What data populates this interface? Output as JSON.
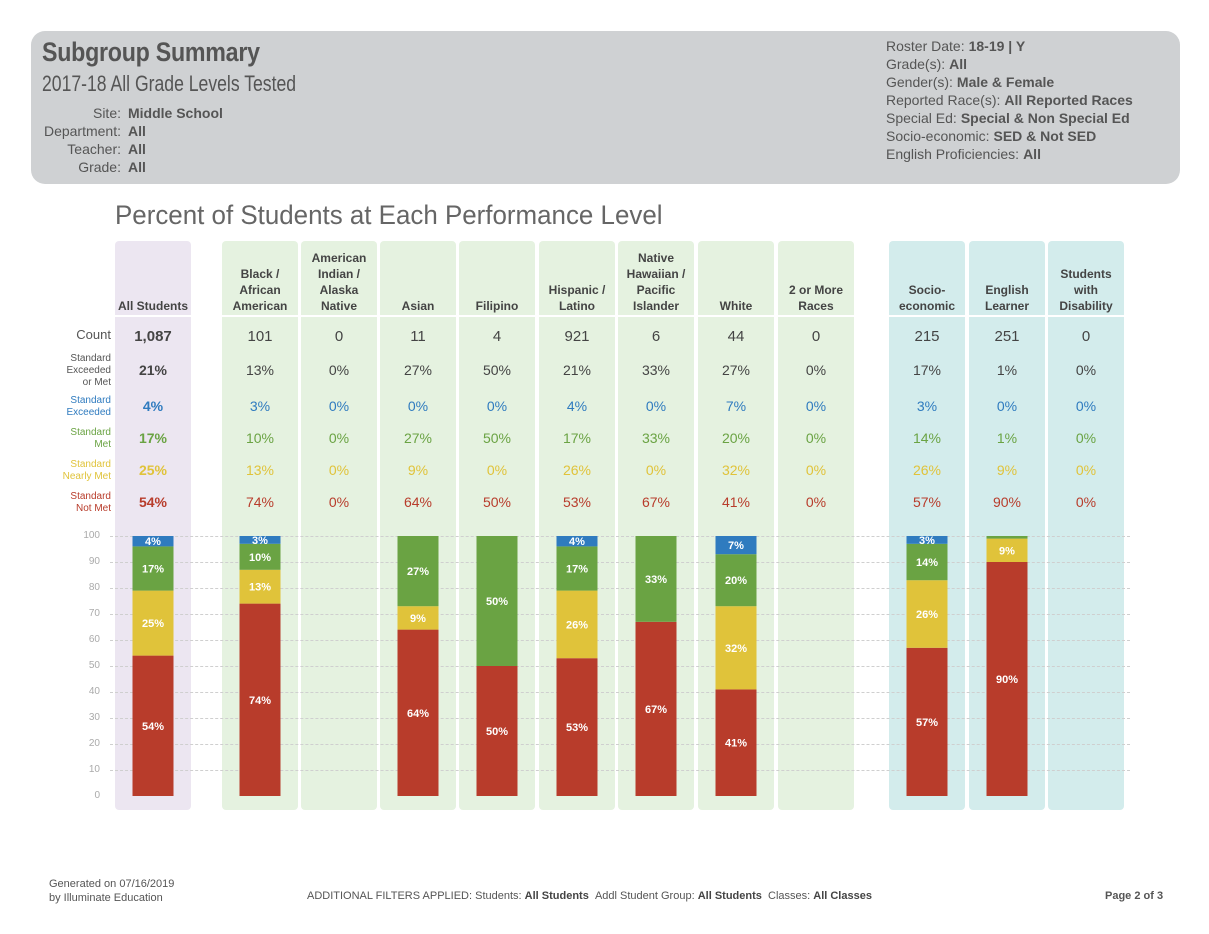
{
  "header": {
    "title": "Subgroup Summary",
    "subtitle": "2017-18  All Grade Levels Tested",
    "left": [
      {
        "key": "Site:",
        "value": "Middle School"
      },
      {
        "key": "Department:",
        "value": "All"
      },
      {
        "key": "Teacher:",
        "value": "All"
      },
      {
        "key": "Grade:",
        "value": "All"
      }
    ],
    "right": [
      {
        "key": "Roster Date:",
        "value": "18-19 | Y"
      },
      {
        "key": "Grade(s):",
        "value": "All"
      },
      {
        "key": "Gender(s):",
        "value": "Male & Female"
      },
      {
        "key": "Reported Race(s):",
        "value": "All Reported Races"
      },
      {
        "key": "Special Ed:",
        "value": "Special & Non Special Ed"
      },
      {
        "key": "Socio-economic:",
        "value": "SED & Not SED"
      },
      {
        "key": "English Proficiencies:",
        "value": "All"
      }
    ]
  },
  "colors": {
    "exceeded": "#2f7bbf",
    "met": "#6aa343",
    "nearly_met": "#e0c33a",
    "not_met": "#b83c2b",
    "met_or_exceeded_text": "#444444",
    "bg_all": "#ece6f1",
    "bg_race": "#e5f2e0",
    "bg_program": "#d3ecec"
  },
  "row_labels": {
    "count": "Count",
    "exceeded_or_met": "Standard\nExceeded\nor Met",
    "exceeded": "Standard\nExceeded",
    "met": "Standard\nMet",
    "nearly_met": "Standard\nNearly Met",
    "not_met": "Standard\nNot Met"
  },
  "chart_data": {
    "type": "bar",
    "stacked": true,
    "title": "Percent of Students at Each Performance Level",
    "ylim": [
      0,
      100
    ],
    "yticks": [
      0,
      10,
      20,
      30,
      40,
      50,
      60,
      70,
      80,
      90,
      100
    ],
    "grid": true,
    "categories": [
      "All Students",
      "Black /\nAfrican\nAmerican",
      "American\nIndian /\nAlaska\nNative",
      "Asian",
      "Filipino",
      "Hispanic /\nLatino",
      "Native\nHawaiian /\nPacific\nIslander",
      "White",
      "2 or More\nRaces",
      "Socio-\neconomic",
      "English\nLearner",
      "Students\nwith\nDisability"
    ],
    "counts": [
      "1,087",
      "101",
      "0",
      "11",
      "4",
      "921",
      "6",
      "44",
      "0",
      "215",
      "251",
      "0"
    ],
    "exceeded_or_met": [
      "21%",
      "13%",
      "0%",
      "27%",
      "50%",
      "21%",
      "33%",
      "27%",
      "0%",
      "17%",
      "1%",
      "0%"
    ],
    "series": [
      {
        "name": "Standard Exceeded",
        "key": "exceeded",
        "labels": [
          "4%",
          "3%",
          "0%",
          "0%",
          "0%",
          "4%",
          "0%",
          "7%",
          "0%",
          "3%",
          "0%",
          "0%"
        ],
        "values": [
          4,
          3,
          0,
          0,
          0,
          4,
          0,
          7,
          0,
          3,
          0,
          0
        ]
      },
      {
        "name": "Standard Met",
        "key": "met",
        "labels": [
          "17%",
          "10%",
          "0%",
          "27%",
          "50%",
          "17%",
          "33%",
          "20%",
          "0%",
          "14%",
          "1%",
          "0%"
        ],
        "values": [
          17,
          10,
          0,
          27,
          50,
          17,
          33,
          20,
          0,
          14,
          1,
          0
        ]
      },
      {
        "name": "Standard Nearly Met",
        "key": "nearly_met",
        "labels": [
          "25%",
          "13%",
          "0%",
          "9%",
          "0%",
          "26%",
          "0%",
          "32%",
          "0%",
          "26%",
          "9%",
          "0%"
        ],
        "values": [
          25,
          13,
          0,
          9,
          0,
          26,
          0,
          32,
          0,
          26,
          9,
          0
        ]
      },
      {
        "name": "Standard Not Met",
        "key": "not_met",
        "labels": [
          "54%",
          "74%",
          "0%",
          "64%",
          "50%",
          "53%",
          "67%",
          "41%",
          "0%",
          "57%",
          "90%",
          "0%"
        ],
        "values": [
          54,
          74,
          0,
          64,
          50,
          53,
          67,
          41,
          0,
          57,
          90,
          0
        ]
      }
    ]
  },
  "footer": {
    "generated_line1": "Generated on 07/16/2019",
    "generated_line2": "by Illuminate Education",
    "filters_prefix": "ADDITIONAL FILTERS APPLIED:",
    "students_key": "Students:",
    "students_val": "All Students",
    "group_key": "Addl Student Group:",
    "group_val": "All Students",
    "classes_key": "Classes:",
    "classes_val": "All Classes",
    "page": "Page 2 of 3"
  }
}
